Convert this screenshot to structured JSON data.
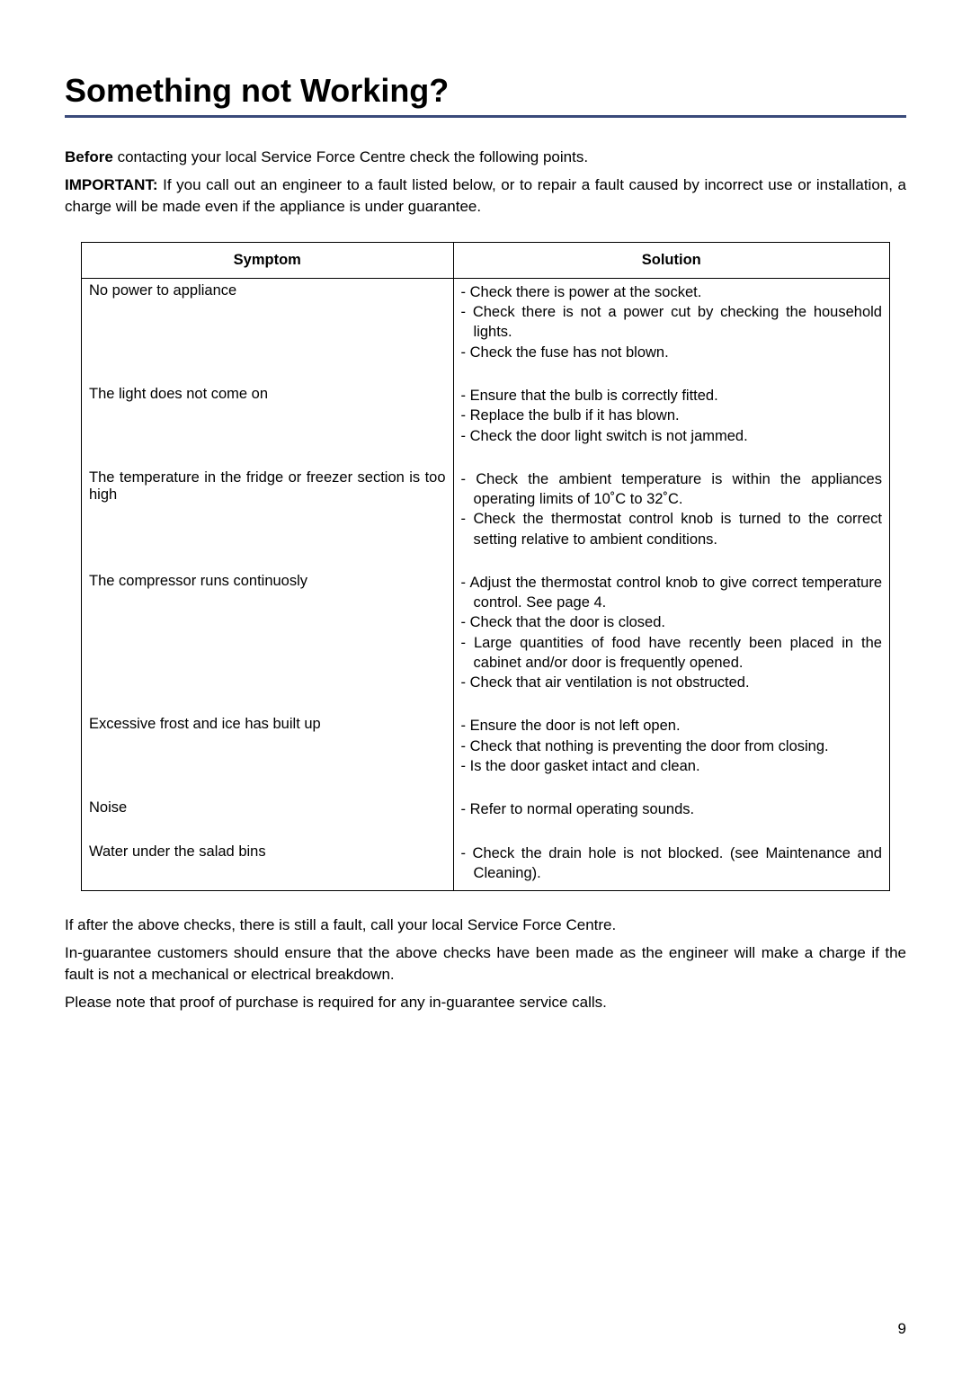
{
  "title": "Something not Working?",
  "intro": {
    "before_bold": "Before",
    "before_rest": " contacting your local Service Force Centre check the following points.",
    "important_bold": "IMPORTANT:",
    "important_rest": " If you call out an engineer to a fault listed below, or to repair a fault caused by incorrect use or installation, a charge will be made even if the appliance is under guarantee."
  },
  "table": {
    "headers": {
      "symptom": "Symptom",
      "solution": "Solution"
    },
    "rows": [
      {
        "symptom": "No power to appliance",
        "solutions": [
          "Check there is power at the socket.",
          "Check there is not a power cut by checking the household lights.",
          "Check the fuse has not blown."
        ]
      },
      {
        "symptom": "The light does not come on",
        "solutions": [
          "Ensure that the bulb is correctly fitted.",
          "Replace the bulb if it has blown.",
          "Check the door light switch is not jammed."
        ]
      },
      {
        "symptom": "The temperature in the fridge or freezer section is too high",
        "solutions": [
          "Check the ambient temperature is within the appliances operating limits of 10˚C to 32˚C.",
          "Check the thermostat control knob is turned to the correct setting relative to ambient conditions."
        ]
      },
      {
        "symptom": "The compressor runs continuosly",
        "solutions": [
          "Adjust the thermostat control knob to give correct temperature control. See page 4.",
          "Check that the door is closed.",
          "Large quantities of food have recently been placed in the cabinet and/or door is frequently opened.",
          "Check that air ventilation is not obstructed."
        ]
      },
      {
        "symptom": "Excessive frost and ice has built up",
        "solutions": [
          "Ensure the door is not left open.",
          "Check that nothing is preventing the door from closing.",
          "Is the door gasket intact and clean."
        ]
      },
      {
        "symptom": "Noise",
        "solutions": [
          "Refer to normal operating sounds."
        ]
      },
      {
        "symptom": "Water under the salad bins",
        "solutions": [
          "Check the drain hole is not blocked. (see Maintenance and Cleaning)."
        ]
      }
    ]
  },
  "outro": [
    "If after the above checks, there is still a fault, call your local Service Force Centre.",
    "In-guarantee customers should ensure that the above checks have been made as the engineer will make a charge if the fault is not a mechanical or electrical breakdown.",
    "Please note that proof of purchase is required for any in-guarantee service calls."
  ],
  "page_number": "9",
  "colors": {
    "title_underline": "#3a4a7a",
    "text": "#000000",
    "border": "#000000",
    "background": "#ffffff"
  }
}
